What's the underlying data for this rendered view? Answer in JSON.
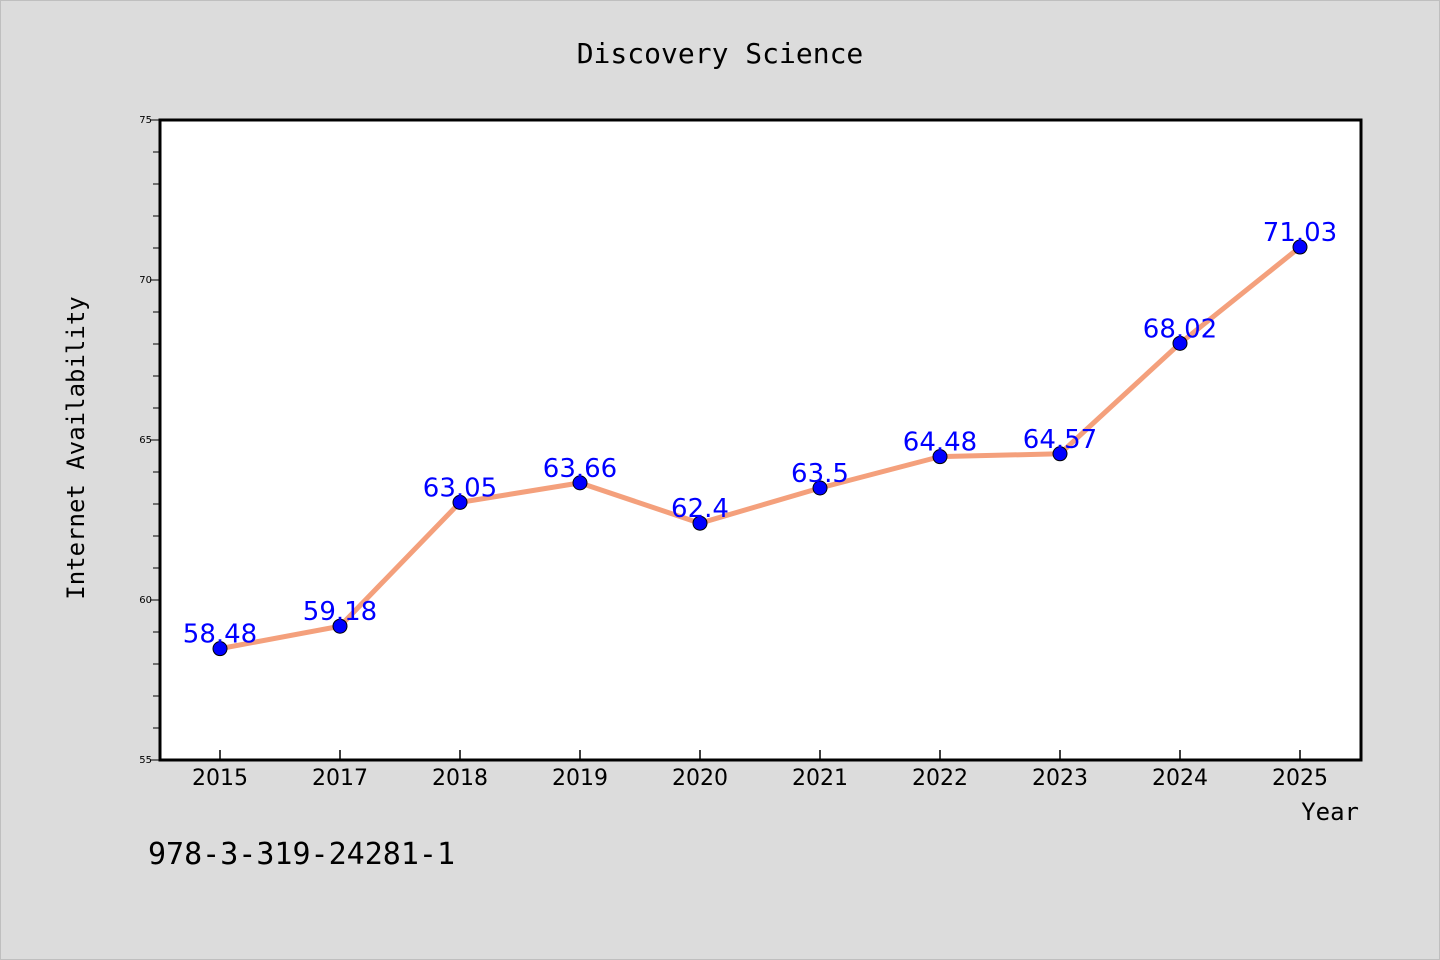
{
  "chart_data": {
    "type": "line",
    "title": "Discovery Science",
    "xlabel": "Year",
    "ylabel": "Internet Availability",
    "categories": [
      "2015",
      "2017",
      "2018",
      "2019",
      "2020",
      "2021",
      "2022",
      "2023",
      "2024",
      "2025"
    ],
    "series": [
      {
        "values": [
          58.48,
          59.18,
          63.05,
          63.66,
          62.4,
          63.5,
          64.48,
          64.57,
          68.02,
          71.03
        ],
        "data_labels": [
          "58.48",
          "59.18",
          "63.05",
          "63.66",
          "62.4",
          "63.5",
          "64.48",
          "64.57",
          "68.02",
          "71.03"
        ]
      }
    ],
    "ylim": [
      55,
      75
    ],
    "yticks": [
      55,
      60,
      65,
      70,
      75
    ],
    "grid": false,
    "colors": {
      "line": "#f4a07c",
      "marker": "#0000ff",
      "label": "#0000ff",
      "background": "#dcdcdc",
      "plot_background": "#ffffff"
    }
  },
  "footnote": "978-3-319-24281-1"
}
